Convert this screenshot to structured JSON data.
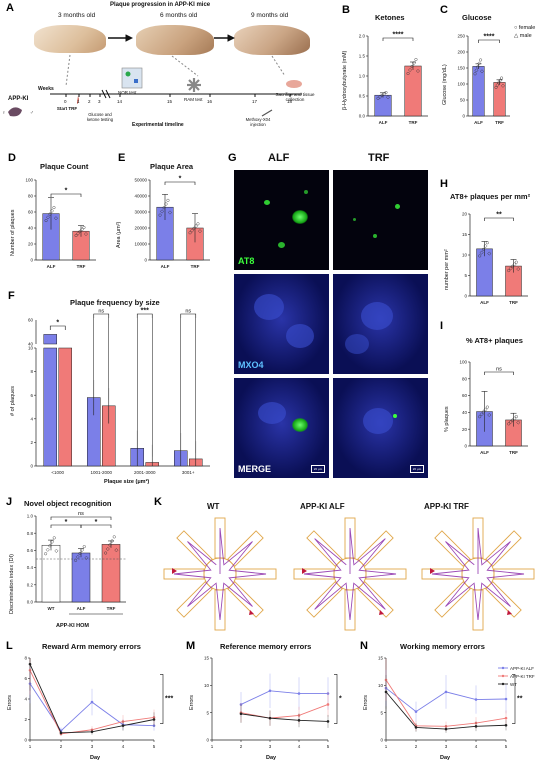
{
  "panels": {
    "A": {
      "letter": "A",
      "title": "Plaque progression in APP-KI mice",
      "ages": [
        "3 months old",
        "6 months old",
        "9 months old"
      ],
      "mouse_label": "APP-KI",
      "weeks_label": "Weeks",
      "weeks": [
        "0",
        "1",
        "2",
        "3",
        "14",
        "15",
        "16",
        "17",
        "18"
      ],
      "start_label": "Start TRF",
      "glucose_label": "Glucose and ketone testing",
      "nor_label": "NOR test",
      "ram_label": "RAM test",
      "sac_label": "Sacrifice and tissue collection",
      "methoxy_label": "Methoxy-X04 injection",
      "timeline_label": "Experimental timeline"
    },
    "B": {
      "letter": "B",
      "title": "Ketones",
      "ylabel": "β-Hydroxybutyrate (mM)"
    },
    "C": {
      "letter": "C",
      "title": "Glucose",
      "ylabel": "Glucose (mg/dL)",
      "legend": [
        "female",
        "male"
      ]
    },
    "D": {
      "letter": "D",
      "title": "Plaque Count",
      "ylabel": "Number of plaques"
    },
    "E": {
      "letter": "E",
      "title": "Plaque Area",
      "ylabel": "Area (μm²)"
    },
    "F": {
      "letter": "F",
      "title": "Plaque frequency by size",
      "ylabel": "# of plaques",
      "xlabel": "Plaque size (μm²)"
    },
    "G": {
      "letter": "G",
      "cols": [
        "ALF",
        "TRF"
      ],
      "rows": [
        "AT8",
        "MXO4",
        "MERGE"
      ],
      "scale": "20 μm"
    },
    "H": {
      "letter": "H",
      "title": "AT8+ plaques per mm²",
      "ylabel": "number per mm²"
    },
    "I": {
      "letter": "I",
      "title": "% AT8+ plaques",
      "ylabel": "% plaques"
    },
    "J": {
      "letter": "J",
      "title": "Novel object recognition",
      "ylabel": "Discrimination index (DI)",
      "group_label": "APP-KI HOM"
    },
    "K": {
      "letter": "K",
      "titles": [
        "WT",
        "APP-KI ALF",
        "APP-KI TRF"
      ]
    },
    "L": {
      "letter": "L",
      "title": "Reward Arm memory errors",
      "ylabel": "Errors",
      "xlabel": "Day"
    },
    "M": {
      "letter": "M",
      "title": "Reference memory errors",
      "ylabel": "Errors",
      "xlabel": "Day"
    },
    "N": {
      "letter": "N",
      "title": "Working memory errors",
      "ylabel": "Errors",
      "xlabel": "Day"
    }
  },
  "colors": {
    "alf": "#7b7fe8",
    "trf": "#f07a78",
    "wt": "#222222",
    "maze": "#e0a74a",
    "path": "#8b2aa8"
  },
  "chart_data": [
    {
      "id": "B",
      "type": "bar",
      "categories": [
        "ALF",
        "TRF"
      ],
      "values": [
        0.52,
        1.25
      ],
      "errors": [
        0.06,
        0.1
      ],
      "ylim": [
        0,
        2.0
      ],
      "yticks": [
        "0.0",
        "0.5",
        "1.0",
        "1.5",
        "2.0"
      ],
      "significance": [
        {
          "pair": [
            0,
            1
          ],
          "label": "****"
        }
      ]
    },
    {
      "id": "C",
      "type": "bar",
      "categories": [
        "ALF",
        "TRF"
      ],
      "values": [
        155,
        105
      ],
      "errors": [
        8,
        8
      ],
      "ylim": [
        0,
        250
      ],
      "yticks": [
        "0",
        "50",
        "100",
        "150",
        "200",
        "250"
      ],
      "significance": [
        {
          "pair": [
            0,
            1
          ],
          "label": "****"
        }
      ]
    },
    {
      "id": "D",
      "type": "bar",
      "categories": [
        "ALF",
        "TRF"
      ],
      "values": [
        58,
        36
      ],
      "errors": [
        20,
        7
      ],
      "ylim": [
        0,
        100
      ],
      "yticks": [
        "0",
        "20",
        "40",
        "60",
        "80",
        "100"
      ],
      "significance": [
        {
          "pair": [
            0,
            1
          ],
          "label": "*"
        }
      ]
    },
    {
      "id": "E",
      "type": "bar",
      "categories": [
        "ALF",
        "TRF"
      ],
      "values": [
        33000,
        20000
      ],
      "errors": [
        8000,
        9000
      ],
      "ylim": [
        0,
        50000
      ],
      "yticks": [
        "0",
        "10000",
        "20000",
        "30000",
        "40000",
        "50000"
      ],
      "significance": [
        {
          "pair": [
            0,
            1
          ],
          "label": "*"
        }
      ]
    },
    {
      "id": "F",
      "type": "bar",
      "categories": [
        "<1000",
        "1001-2000",
        "2001-3000",
        "3001+"
      ],
      "series": [
        {
          "values": [
            48,
            5.8,
            1.5,
            1.3
          ]
        },
        {
          "values": [
            32,
            5.1,
            0.3,
            0.6
          ]
        }
      ],
      "ylim": [
        0,
        60
      ],
      "yticks": [
        "0",
        "2",
        "4",
        "6",
        "8",
        "10",
        "40",
        "60"
      ],
      "significance": [
        "*",
        "ns",
        "***",
        "ns"
      ]
    },
    {
      "id": "H",
      "type": "bar",
      "categories": [
        "ALF",
        "TRF"
      ],
      "values": [
        11.5,
        7.3
      ],
      "errors": [
        1.8,
        1.6
      ],
      "ylim": [
        0,
        20
      ],
      "yticks": [
        "0",
        "5",
        "10",
        "15",
        "20"
      ],
      "significance": [
        {
          "pair": [
            0,
            1
          ],
          "label": "**"
        }
      ]
    },
    {
      "id": "I",
      "type": "bar",
      "categories": [
        "ALF",
        "TRF"
      ],
      "values": [
        41,
        31
      ],
      "errors": [
        24,
        8
      ],
      "ylim": [
        0,
        100
      ],
      "yticks": [
        "0",
        "20",
        "40",
        "60",
        "80",
        "100"
      ],
      "significance": [
        {
          "pair": [
            0,
            1
          ],
          "label": "ns"
        }
      ]
    },
    {
      "id": "J",
      "type": "bar",
      "categories": [
        "WT",
        "ALF",
        "TRF"
      ],
      "values": [
        0.66,
        0.57,
        0.67
      ],
      "errors": [
        0.06,
        0.05,
        0.04
      ],
      "ylim": [
        0,
        1.0
      ],
      "yticks": [
        "0.0",
        "0.2",
        "0.4",
        "0.6",
        "0.8",
        "1.0"
      ],
      "significance": [
        "ns",
        "*",
        "*"
      ]
    },
    {
      "id": "L",
      "type": "line",
      "x": [
        1,
        2,
        3,
        4,
        5
      ],
      "xticks": [
        "1",
        "2",
        "3",
        "4",
        "5"
      ],
      "ylim": [
        0,
        8
      ],
      "yticks": [
        "0",
        "2",
        "4",
        "6",
        "8"
      ],
      "series": [
        {
          "values": [
            5.5,
            0.9,
            3.7,
            1.5,
            1.4
          ]
        },
        {
          "values": [
            6.8,
            0.6,
            1.0,
            1.8,
            2.2
          ]
        },
        {
          "values": [
            7.4,
            0.7,
            0.8,
            1.4,
            2.0
          ]
        }
      ],
      "significance": "***"
    },
    {
      "id": "M",
      "type": "line",
      "x": [
        2,
        3,
        4,
        5
      ],
      "xticks": [
        "1",
        "2",
        "3",
        "4",
        "5"
      ],
      "ylim": [
        0,
        15
      ],
      "yticks": [
        "0",
        "5",
        "10",
        "15"
      ],
      "series": [
        {
          "values": [
            6.5,
            9.0,
            8.5,
            8.5
          ]
        },
        {
          "values": [
            5.0,
            4.0,
            4.5,
            6.5
          ]
        },
        {
          "values": [
            4.8,
            4.0,
            3.6,
            3.4
          ]
        }
      ],
      "significance": "*"
    },
    {
      "id": "N",
      "type": "line",
      "x": [
        1,
        2,
        3,
        4,
        5
      ],
      "xticks": [
        "1",
        "2",
        "3",
        "4",
        "5"
      ],
      "ylim": [
        0,
        15
      ],
      "yticks": [
        "0",
        "5",
        "10",
        "15"
      ],
      "series": [
        {
          "name": "APP-KI ALF",
          "values": [
            9.5,
            5.2,
            8.8,
            7.4,
            7.5
          ]
        },
        {
          "name": "APP-KI TRF",
          "values": [
            11.0,
            2.6,
            2.5,
            3.1,
            4.0
          ]
        },
        {
          "name": "WT",
          "values": [
            8.8,
            2.3,
            2.0,
            2.5,
            2.7
          ]
        }
      ],
      "significance": "**"
    }
  ]
}
